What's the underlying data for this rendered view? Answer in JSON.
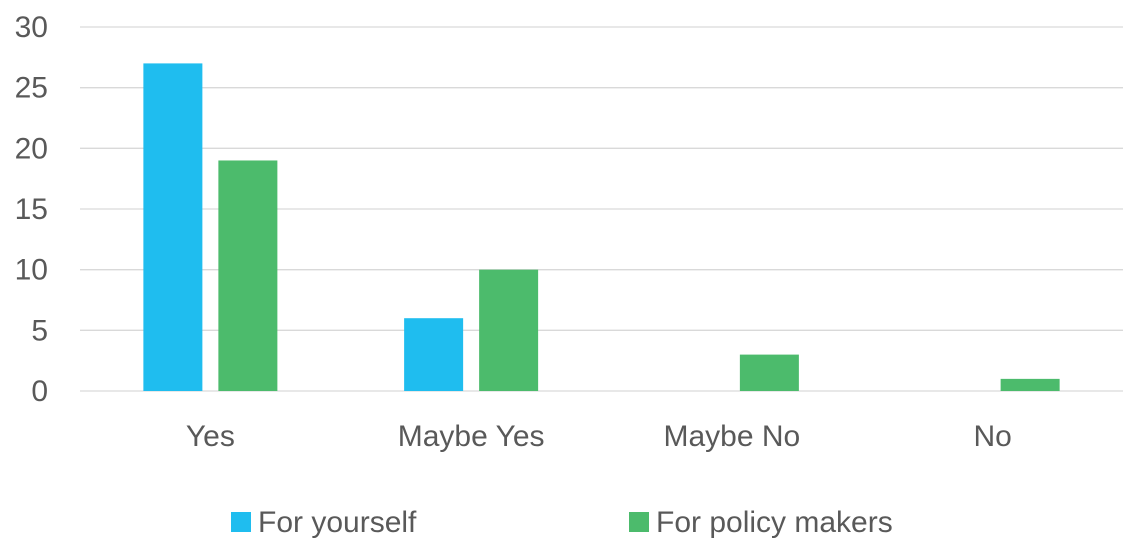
{
  "chart_data": {
    "type": "bar",
    "title": "",
    "xlabel": "",
    "ylabel": "",
    "categories": [
      "Yes",
      "Maybe Yes",
      "Maybe No",
      "No"
    ],
    "series": [
      {
        "name": "For yourself",
        "values": [
          27,
          6,
          0,
          0
        ],
        "color": "#1FBDEF"
      },
      {
        "name": "For policy makers",
        "values": [
          19,
          10,
          3,
          1
        ],
        "color": "#4CBB6C"
      }
    ],
    "ylim": [
      0,
      30
    ],
    "yticks": [
      "0",
      "5",
      "10",
      "15",
      "20",
      "25",
      "30"
    ],
    "grid": true,
    "gridline_color": "#D9D9D9",
    "legend_position": "bottom"
  }
}
